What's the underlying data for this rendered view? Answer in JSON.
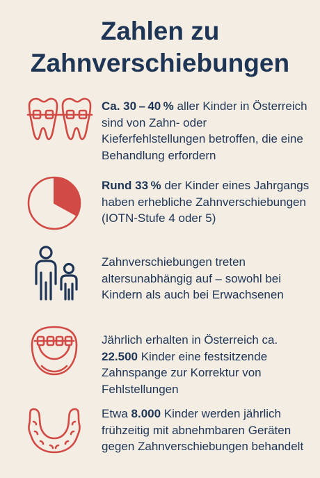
{
  "title": {
    "line1": "Zahlen zu",
    "line2": "Zahnverschiebungen"
  },
  "facts": [
    {
      "icon": "teeth-braces-icon",
      "highlight": "Ca. 30 – 40 %",
      "text": " aller Kinder in Österreich sind von Zahn- oder Kieferfehlstellungen betroffen, die eine Behandlung erfordern"
    },
    {
      "icon": "pie-chart-icon",
      "highlight": "Rund 33 %",
      "text": " der Kinder eines Jahrgangs haben erhebliche Zahnverschiebungen (IOTN-Stufe 4 oder 5)",
      "pie_share_percent": 33
    },
    {
      "icon": "adult-child-icon",
      "text": "Zahnverschiebungen treten altersunabhängig auf – sowohl bei Kindern als auch bei Erwachsenen"
    },
    {
      "icon": "fixed-braces-icon",
      "pre": "Jährlich erhalten in Österreich ca. ",
      "highlight": "22.500",
      "text": " Kinder eine festsitzende Zahnspange zur Korrektur von Fehlstellungen"
    },
    {
      "icon": "removable-retainer-icon",
      "pre": "Etwa ",
      "highlight": "8.000",
      "text": " Kinder werden jährlich frühzeitig mit abnehmbaren Geräten gegen Zahnverschiebungen behandelt"
    }
  ],
  "colors": {
    "background": "#f3ede3",
    "text": "#1f3556",
    "accent_red": "#d24a45"
  }
}
